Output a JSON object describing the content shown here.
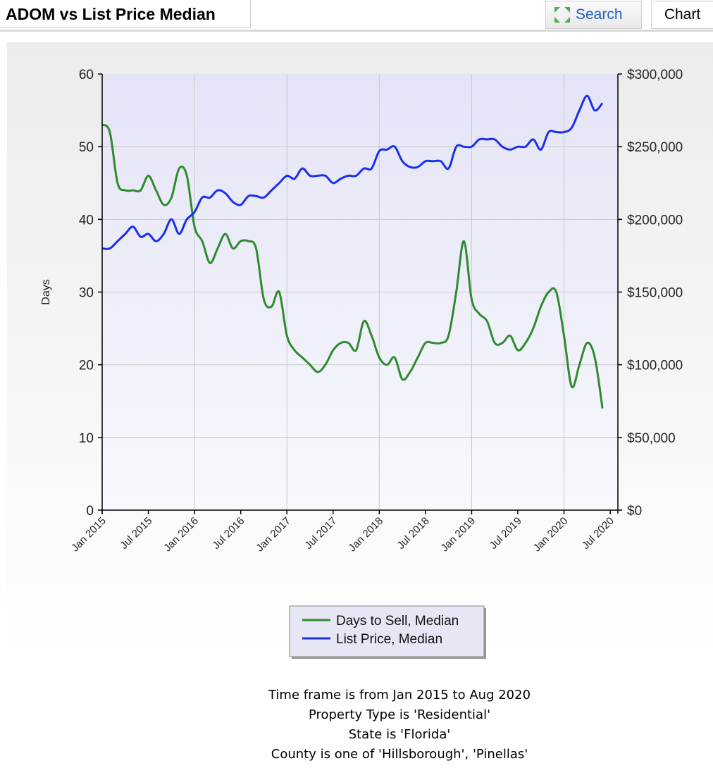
{
  "header": {
    "title": "ADOM vs List Price Median",
    "search_label": "Search",
    "chart_label": "Chart"
  },
  "chart_data": {
    "type": "line",
    "y_left": {
      "label": "Days",
      "range": [
        0,
        60
      ],
      "ticks": [
        "0",
        "10",
        "20",
        "30",
        "40",
        "50",
        "60"
      ]
    },
    "y_right": {
      "range": [
        0,
        300000
      ],
      "ticks": [
        "$0",
        "$50,000",
        "$100,000",
        "$150,000",
        "$200,000",
        "$250,000",
        "$300,000"
      ]
    },
    "x_range": [
      0,
      67
    ],
    "x_ticks": [
      {
        "i": 0,
        "label": "Jan 2015"
      },
      {
        "i": 6,
        "label": "Jul 2015"
      },
      {
        "i": 12,
        "label": "Jan 2016"
      },
      {
        "i": 18,
        "label": "Jul 2016"
      },
      {
        "i": 24,
        "label": "Jan 2017"
      },
      {
        "i": 30,
        "label": "Jul 2017"
      },
      {
        "i": 36,
        "label": "Jan 2018"
      },
      {
        "i": 42,
        "label": "Jul 2018"
      },
      {
        "i": 48,
        "label": "Jan 2019"
      },
      {
        "i": 54,
        "label": "Jul 2019"
      },
      {
        "i": 60,
        "label": "Jan 2020"
      },
      {
        "i": 66,
        "label": "Jul 2020"
      }
    ],
    "series": [
      {
        "name": "Days to Sell, Median",
        "color": "#2e8b2e",
        "axis": "left",
        "values": [
          53,
          52,
          45,
          44,
          44,
          44,
          46,
          44,
          42,
          43,
          47,
          46,
          39,
          37,
          34,
          36,
          38,
          36,
          37,
          37,
          36,
          29,
          28,
          30,
          24,
          22,
          21,
          20,
          19,
          20,
          22,
          23,
          23,
          22,
          26,
          24,
          21,
          20,
          21,
          18,
          19,
          21,
          23,
          23,
          23,
          24,
          30,
          37,
          29,
          27,
          26,
          23,
          23,
          24,
          22,
          23,
          25,
          28,
          30,
          30,
          24,
          17,
          20,
          23,
          21,
          14
        ]
      },
      {
        "name": "List Price, Median",
        "color": "#1a2ff0",
        "axis": "right",
        "values": [
          180000,
          180000,
          185000,
          190000,
          195000,
          188000,
          190000,
          185000,
          190000,
          200000,
          190000,
          200000,
          205000,
          215000,
          215000,
          220000,
          218000,
          212000,
          210000,
          216000,
          216000,
          215000,
          220000,
          225000,
          230000,
          228000,
          235000,
          230000,
          230000,
          230000,
          225000,
          228000,
          230000,
          230000,
          235000,
          235000,
          247000,
          248000,
          250000,
          240000,
          236000,
          236000,
          240000,
          240000,
          240000,
          235000,
          250000,
          250000,
          250000,
          255000,
          255000,
          255000,
          250000,
          248000,
          250000,
          250000,
          255000,
          248000,
          260000,
          260000,
          260000,
          263000,
          275000,
          285000,
          275000,
          280000
        ]
      }
    ]
  },
  "captions": [
    "Time frame is from Jan 2015 to Aug 2020",
    "Property Type is 'Residential'",
    "State is 'Florida'",
    "County is one of 'Hillsborough', 'Pinellas'"
  ]
}
